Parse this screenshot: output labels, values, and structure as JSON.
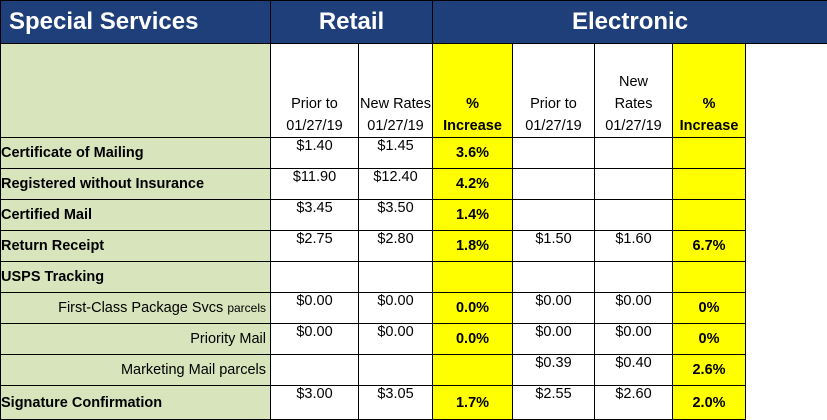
{
  "header": {
    "title": "Special Services",
    "retail": "Retail",
    "electronic": "Electronic"
  },
  "columns": {
    "prior": [
      "Prior to",
      "01/27/19"
    ],
    "new": [
      "New Rates",
      "01/27/19"
    ],
    "pct": [
      "%",
      "Increase"
    ],
    "e_prior": [
      "Prior to",
      "01/27/19"
    ],
    "e_new": [
      "New",
      "Rates",
      "01/27/19"
    ],
    "e_pct": [
      "%",
      "Increase"
    ]
  },
  "rows": [
    {
      "label": "Certificate of Mailing",
      "small": "",
      "indent": false,
      "r_prior": "$1.40",
      "r_new": "$1.45",
      "r_pct": "3.6%",
      "e_prior": "",
      "e_new": "",
      "e_pct": ""
    },
    {
      "label": "Registered without Insurance",
      "small": "",
      "indent": false,
      "r_prior": "$11.90",
      "r_new": "$12.40",
      "r_pct": "4.2%",
      "e_prior": "",
      "e_new": "",
      "e_pct": ""
    },
    {
      "label": "Certified Mail",
      "small": "",
      "indent": false,
      "r_prior": "$3.45",
      "r_new": "$3.50",
      "r_pct": "1.4%",
      "e_prior": "",
      "e_new": "",
      "e_pct": ""
    },
    {
      "label": "Return Receipt",
      "small": "",
      "indent": false,
      "r_prior": "$2.75",
      "r_new": "$2.80",
      "r_pct": "1.8%",
      "e_prior": "$1.50",
      "e_new": "$1.60",
      "e_pct": "6.7%"
    },
    {
      "label": "USPS Tracking",
      "small": "",
      "indent": false,
      "r_prior": "",
      "r_new": "",
      "r_pct": "",
      "e_prior": "",
      "e_new": "",
      "e_pct": ""
    },
    {
      "label": "First-Class Package Svcs",
      "small": "parcels",
      "indent": true,
      "r_prior": "$0.00",
      "r_new": "$0.00",
      "r_pct": "0.0%",
      "e_prior": "$0.00",
      "e_new": "$0.00",
      "e_pct": "0%"
    },
    {
      "label": "Priority Mail",
      "small": "",
      "indent": true,
      "r_prior": "$0.00",
      "r_new": "$0.00",
      "r_pct": "0.0%",
      "e_prior": "$0.00",
      "e_new": "$0.00",
      "e_pct": "0%"
    },
    {
      "label": "Marketing Mail parcels",
      "small": "",
      "indent": true,
      "r_prior": "",
      "r_new": "",
      "r_pct": "",
      "e_prior": "$0.39",
      "e_new": "$0.40",
      "e_pct": "2.6%"
    },
    {
      "label": "Signature Confirmation",
      "small": "",
      "indent": false,
      "r_prior": "$3.00",
      "r_new": "$3.05",
      "r_pct": "1.7%",
      "e_prior": "$2.55",
      "e_new": "$2.60",
      "e_pct": "2.0%"
    }
  ],
  "colors": {
    "header_bg": "#1f3f7a",
    "label_bg": "#d8e4bc",
    "highlight": "#ffff00"
  }
}
